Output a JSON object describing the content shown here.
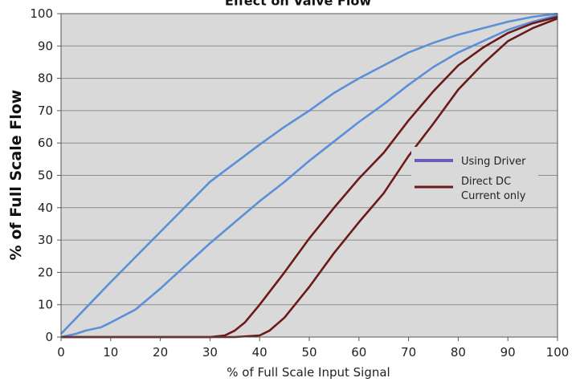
{
  "chart_data": {
    "type": "line",
    "title": "Effect on Valve Flow",
    "xlabel": "% of Full Scale Input Signal",
    "ylabel": "% of Full Scale Flow",
    "xlim": [
      0,
      100
    ],
    "ylim": [
      0,
      100
    ],
    "xticks": [
      0,
      10,
      20,
      30,
      40,
      50,
      60,
      70,
      80,
      90,
      100
    ],
    "yticks": [
      0,
      10,
      20,
      30,
      40,
      50,
      60,
      70,
      80,
      90,
      100
    ],
    "grid": true,
    "legend_position": "right",
    "colors": {
      "plot_background": "#d9d9d9",
      "gridline": "#8c8c8c",
      "using_driver": "#5b8fd8",
      "using_driver_legend": "#6a5bb8",
      "direct_dc": "#6b1a1a"
    },
    "legend": [
      {
        "label": "Using Driver",
        "color": "#6a5bb8"
      },
      {
        "label_lines": [
          "Direct DC",
          "Current only"
        ],
        "color": "#6b1a1a"
      }
    ],
    "series": [
      {
        "name": "Using Driver",
        "color": "#5b8fd8",
        "branches": [
          {
            "x": [
              0,
              5,
              10,
              20,
              30,
              40,
              45,
              50,
              55,
              60,
              65,
              70,
              75,
              80,
              85,
              90,
              95,
              100
            ],
            "y": [
              1,
              9,
              17,
              32.5,
              48,
              59.5,
              65,
              70,
              75.5,
              80,
              84,
              88,
              91,
              93.5,
              95.5,
              97.5,
              99,
              100
            ]
          },
          {
            "x": [
              0,
              3,
              5,
              8,
              10,
              15,
              20,
              25,
              30,
              35,
              40,
              45,
              50,
              55,
              60,
              65,
              70,
              75,
              80,
              85,
              90,
              95,
              100
            ],
            "y": [
              0,
              1,
              2,
              3,
              4.5,
              8.5,
              15,
              22,
              29,
              35.5,
              42,
              48,
              54.5,
              60.5,
              66.5,
              72,
              78,
              83.5,
              88,
              91.5,
              95,
              97.5,
              99.5
            ]
          }
        ]
      },
      {
        "name": "Direct DC Current only",
        "color": "#6b1a1a",
        "branches": [
          {
            "x": [
              0,
              10,
              20,
              30,
              33,
              35,
              37,
              40,
              45,
              50,
              55,
              60,
              65,
              70,
              75,
              80,
              85,
              90,
              95,
              100
            ],
            "y": [
              0,
              0,
              0,
              0,
              0.5,
              2,
              4.5,
              10,
              20,
              30.5,
              40,
              49,
              57,
              67,
              76,
              84,
              89.5,
              94,
              97,
              99
            ]
          },
          {
            "x": [
              0,
              10,
              20,
              30,
              35,
              40,
              42,
              45,
              50,
              55,
              60,
              65,
              70,
              75,
              80,
              85,
              90,
              95,
              100
            ],
            "y": [
              0,
              0,
              0,
              0,
              0,
              0.5,
              2,
              6,
              15.5,
              26,
              35.5,
              44.5,
              56,
              66,
              76.5,
              84.5,
              91.5,
              95.5,
              98.5
            ]
          }
        ]
      }
    ]
  }
}
